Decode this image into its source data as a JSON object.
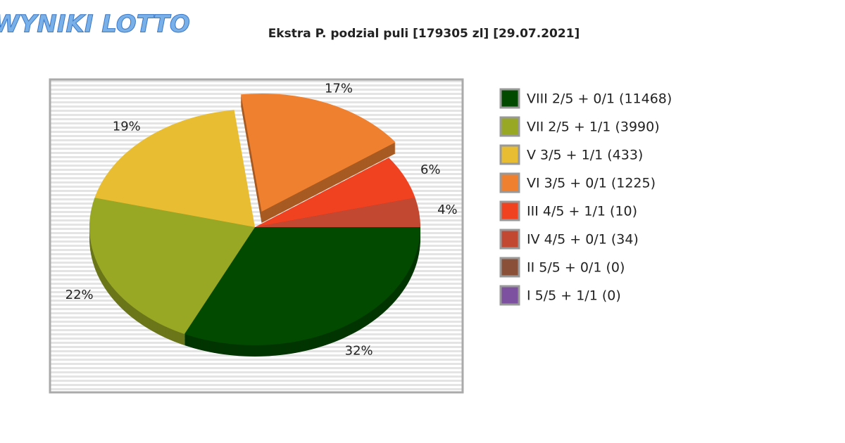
{
  "logo": "WYNIKI LOTTO",
  "chart_data": {
    "type": "pie",
    "title": "Ekstra P. podzial puli [179305 zl] [29.07.2021]",
    "categories": [
      "VIII 2/5 + 0/1 (11468)",
      "VII 2/5 + 1/1 (3990)",
      "V 3/5 + 1/1 (433)",
      "VI 3/5 + 0/1 (1225)",
      "III 4/5 + 1/1 (10)",
      "IV 4/5 + 0/1 (34)",
      "II 5/5 + 0/1 (0)",
      "I 5/5 + 1/1 (0)"
    ],
    "values": [
      32,
      22,
      19,
      17,
      6,
      4,
      0,
      0
    ],
    "value_labels": [
      "32%",
      "22%",
      "19%",
      "17%",
      "6%",
      "4%",
      null,
      null
    ],
    "colors": [
      "#024a00",
      "#98a824",
      "#e8bd32",
      "#ef8030",
      "#f04220",
      "#c24832",
      "#8a5038",
      "#7d50a0"
    ],
    "exploded": [
      3
    ],
    "legend": "right"
  }
}
